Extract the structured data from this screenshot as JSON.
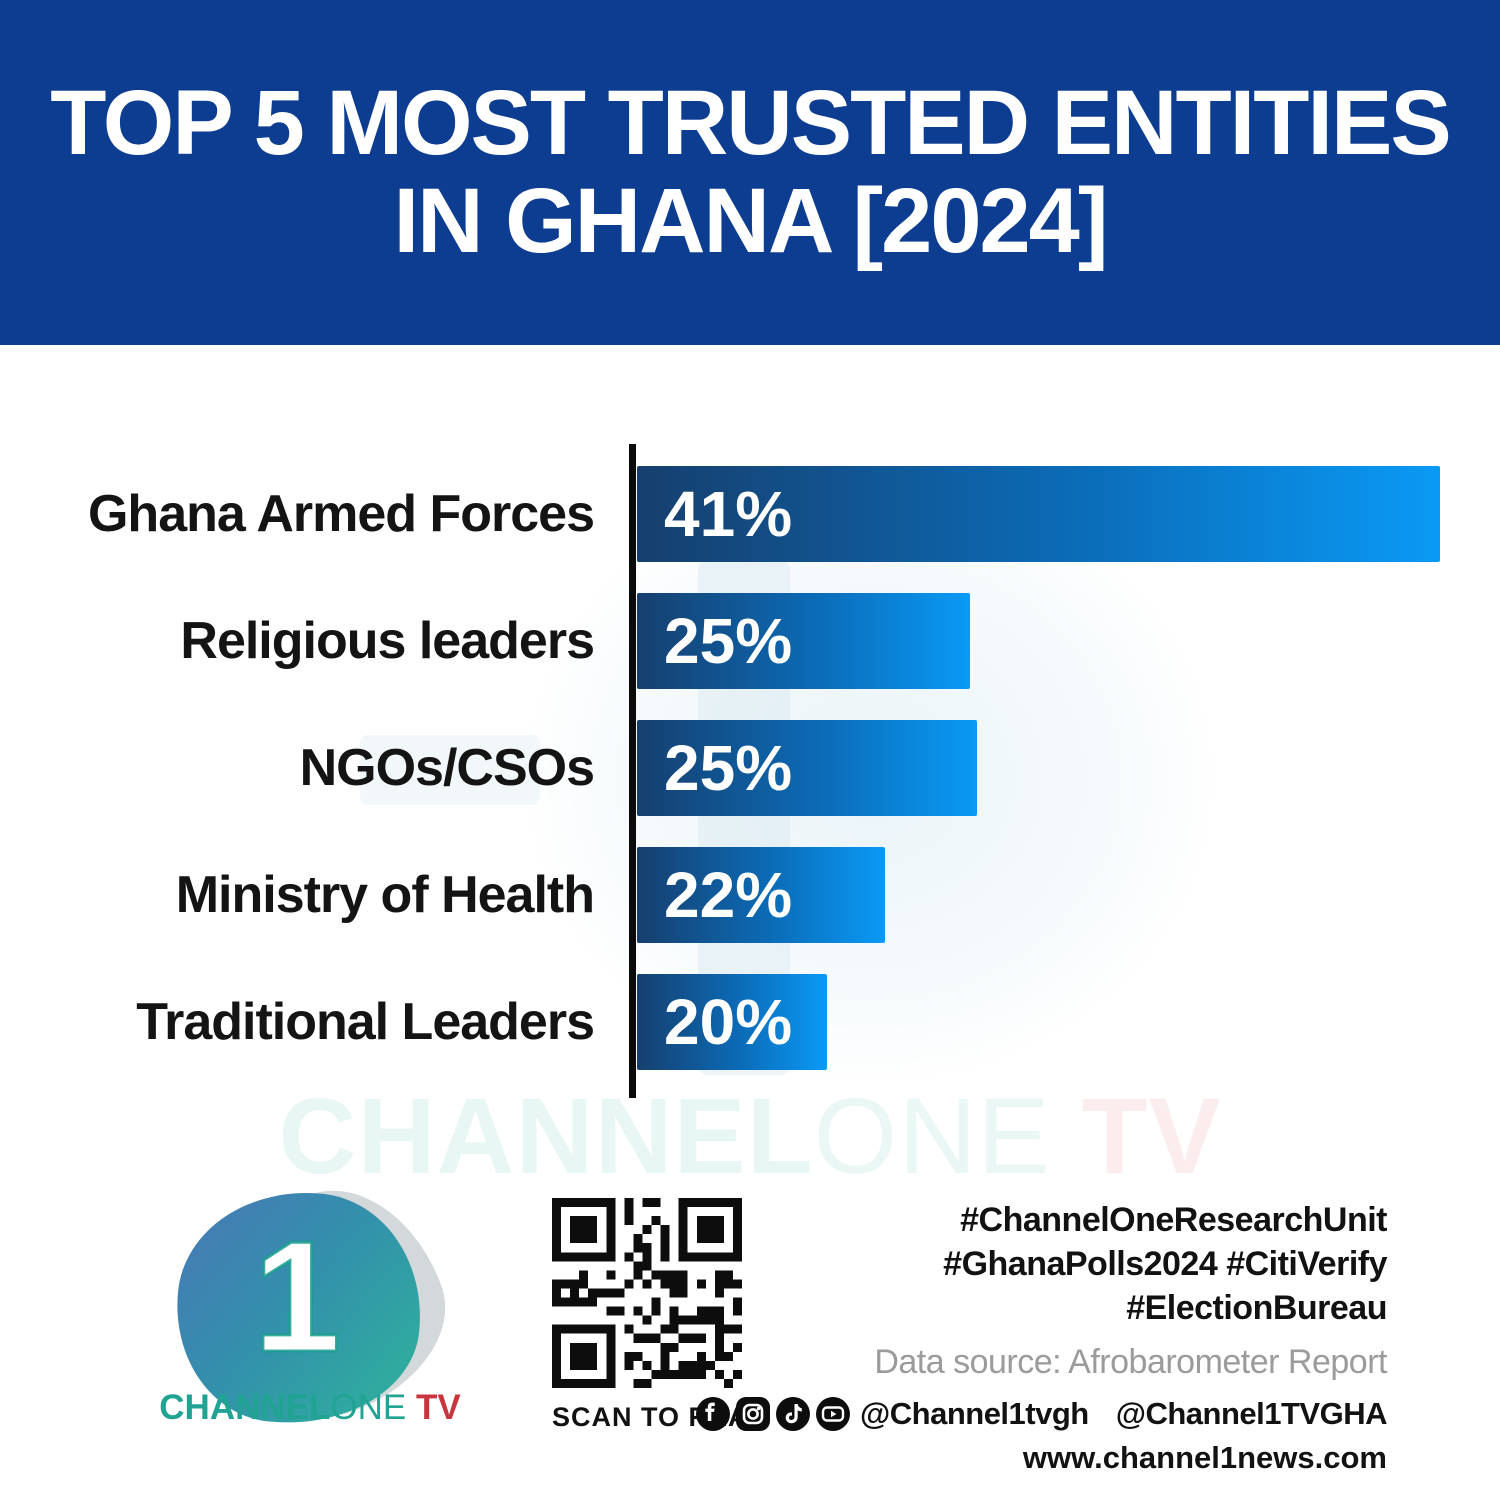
{
  "header": {
    "title_line1": "TOP 5 MOST TRUSTED ENTITIES",
    "title_line2": "IN GHANA [2024]"
  },
  "chart_data": {
    "type": "bar",
    "orientation": "horizontal",
    "title": "Top 5 most trusted entities in Ghana [2024]",
    "categories": [
      "Ghana Armed Forces",
      "Religious leaders",
      "NGOs/CSOs",
      "Ministry of Health",
      "Traditional Leaders"
    ],
    "values": [
      41,
      25,
      25,
      22,
      20
    ],
    "value_labels": [
      "41%",
      "25%",
      "25%",
      "22%",
      "20%"
    ],
    "unit": "%",
    "bar_visual_width_pct": [
      100,
      41.5,
      42.4,
      30.9,
      23.7
    ],
    "xlim": [
      0,
      41
    ],
    "grid": false,
    "legend": "none",
    "value_label_position": "inside-left",
    "bar_gradient": [
      "#163F6E",
      "#0A9AF5"
    ],
    "axis_color": "#0B0B0B"
  },
  "watermark": {
    "part1": "CHANNEL",
    "part2": "ONE",
    "part3": " TV"
  },
  "footer": {
    "logo": {
      "numeral": "1",
      "word_channel": "CHANNEL",
      "word_one": "ONE",
      "word_tv": " TV"
    },
    "qr_caption": "SCAN TO READ",
    "hashtags": [
      "#ChannelOneResearchUnit",
      "#GhanaPolls2024 #CitiVerify",
      "#ElectionBureau"
    ],
    "data_source": "Data source: Afrobarometer Report",
    "social": {
      "icons": [
        "facebook-icon",
        "instagram-icon",
        "tiktok-icon",
        "youtube-icon",
        "x-icon"
      ],
      "handle_primary": "@Channel1tvgh",
      "handle_x": "@Channel1TVGHA"
    },
    "website": "www.channel1news.com"
  },
  "colors": {
    "header_bg": "#0C3D90",
    "bar_gradient_start": "#163F6E",
    "bar_gradient_end": "#0A9AF5",
    "accent_teal": "#21A394",
    "accent_red": "#C9353E",
    "text_gray": "#9B9B9B"
  },
  "layout": {
    "row_tops": [
      466,
      593,
      720,
      847,
      974
    ]
  }
}
